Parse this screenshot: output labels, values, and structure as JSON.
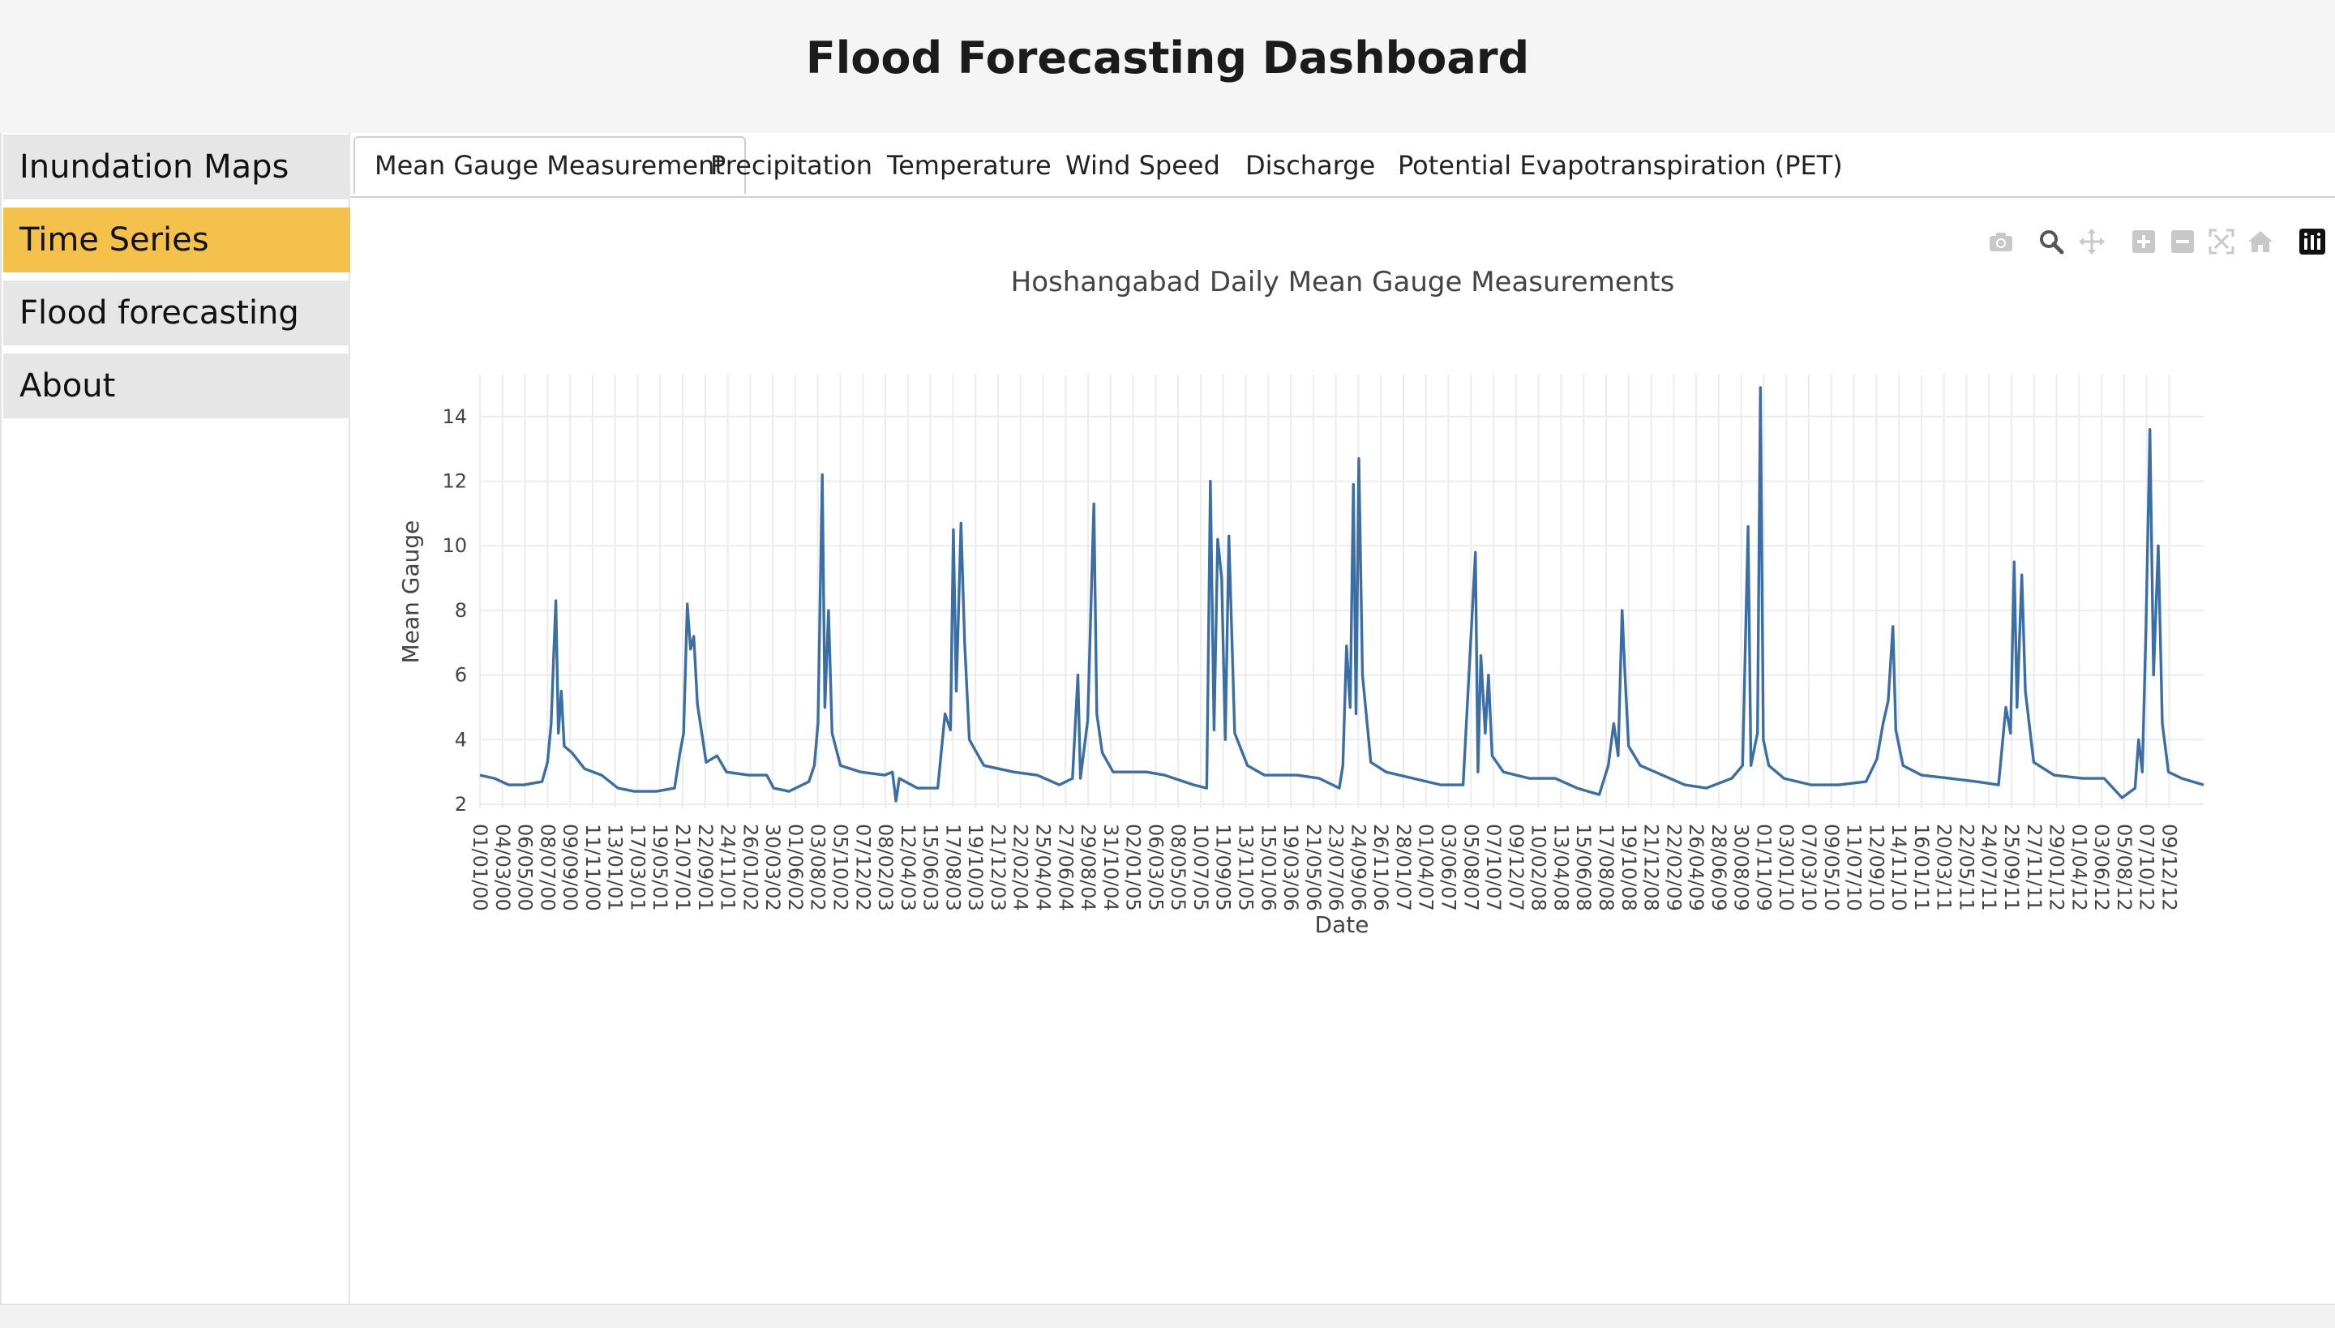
{
  "header": {
    "title": "Flood Forecasting Dashboard"
  },
  "sidebar": {
    "items": [
      {
        "label": "Inundation Maps",
        "active": false
      },
      {
        "label": "Time Series",
        "active": true
      },
      {
        "label": "Flood forecasting",
        "active": false
      },
      {
        "label": "About",
        "active": false
      }
    ]
  },
  "tabs": [
    {
      "label": "Mean Gauge Measurement",
      "active": true
    },
    {
      "label": "Precipitation",
      "active": false
    },
    {
      "label": "Temperature",
      "active": false
    },
    {
      "label": "Wind Speed",
      "active": false
    },
    {
      "label": "Discharge",
      "active": false
    },
    {
      "label": "Potential Evapotranspiration (PET)",
      "active": false
    }
  ],
  "modebar": {
    "icons": [
      "camera-icon",
      "zoom-icon",
      "pan-icon",
      "zoom-in-icon",
      "zoom-out-icon",
      "autoscale-icon",
      "reset-axes-icon",
      "plotly-logo-icon"
    ]
  },
  "colors": {
    "accent": "#f4c14b",
    "series": "#3a6ea5",
    "nav_bg": "#e6e6e6"
  },
  "chart_data": {
    "type": "line",
    "title": "Hoshangabad Daily Mean Gauge Measurements",
    "xlabel": "Date",
    "ylabel": "Mean Gauge",
    "ylim": [
      1.9,
      15.3
    ],
    "yticks": [
      2,
      4,
      6,
      8,
      10,
      12,
      14
    ],
    "xlim": [
      "2000-01-01",
      "2012-12-31"
    ],
    "grid": true,
    "xtick_labels": [
      "01/01/00",
      "04/03/00",
      "06/05/00",
      "08/07/00",
      "09/09/00",
      "11/11/00",
      "13/01/01",
      "17/03/01",
      "19/05/01",
      "21/07/01",
      "22/09/01",
      "24/11/01",
      "26/01/02",
      "30/03/02",
      "01/06/02",
      "03/08/02",
      "05/10/02",
      "07/12/02",
      "08/02/03",
      "12/04/03",
      "15/06/03",
      "17/08/03",
      "19/10/03",
      "21/12/03",
      "22/02/04",
      "25/04/04",
      "27/06/04",
      "29/08/04",
      "31/10/04",
      "02/01/05",
      "06/03/05",
      "08/05/05",
      "10/07/05",
      "11/09/05",
      "13/11/05",
      "15/01/06",
      "19/03/06",
      "21/05/06",
      "23/07/06",
      "24/09/06",
      "26/11/06",
      "28/01/07",
      "01/04/07",
      "03/06/07",
      "05/08/07",
      "07/10/07",
      "09/12/07",
      "10/02/08",
      "13/04/08",
      "15/06/08",
      "17/08/08",
      "19/10/08",
      "21/12/08",
      "22/02/09",
      "26/04/09",
      "28/06/09",
      "30/08/09",
      "01/11/09",
      "03/01/10",
      "07/03/10",
      "09/05/10",
      "11/07/10",
      "12/09/10",
      "14/11/10",
      "16/01/11",
      "20/03/11",
      "22/05/11",
      "24/07/11",
      "25/09/11",
      "27/11/11",
      "29/01/12",
      "01/04/12",
      "03/06/12",
      "05/08/12",
      "07/10/12",
      "09/12/12"
    ],
    "series": [
      {
        "name": "",
        "points": [
          [
            "2000-01-01",
            2.9
          ],
          [
            "2000-02-10",
            2.8
          ],
          [
            "2000-03-20",
            2.6
          ],
          [
            "2000-05-01",
            2.6
          ],
          [
            "2000-06-20",
            2.7
          ],
          [
            "2000-07-05",
            3.3
          ],
          [
            "2000-07-15",
            4.5
          ],
          [
            "2000-07-22",
            6.6
          ],
          [
            "2000-07-28",
            8.3
          ],
          [
            "2000-08-04",
            4.2
          ],
          [
            "2000-08-12",
            5.5
          ],
          [
            "2000-08-20",
            3.8
          ],
          [
            "2000-09-10",
            3.6
          ],
          [
            "2000-10-15",
            3.1
          ],
          [
            "2000-12-01",
            2.9
          ],
          [
            "2001-01-15",
            2.5
          ],
          [
            "2001-03-01",
            2.4
          ],
          [
            "2001-05-01",
            2.4
          ],
          [
            "2001-06-20",
            2.5
          ],
          [
            "2001-07-05",
            3.6
          ],
          [
            "2001-07-15",
            4.2
          ],
          [
            "2001-07-25",
            8.2
          ],
          [
            "2001-08-03",
            6.8
          ],
          [
            "2001-08-12",
            7.2
          ],
          [
            "2001-08-22",
            5.1
          ],
          [
            "2001-09-15",
            3.3
          ],
          [
            "2001-10-15",
            3.5
          ],
          [
            "2001-11-10",
            3.0
          ],
          [
            "2002-01-10",
            2.9
          ],
          [
            "2002-03-01",
            2.9
          ],
          [
            "2002-03-20",
            2.5
          ],
          [
            "2002-05-01",
            2.4
          ],
          [
            "2002-06-25",
            2.7
          ],
          [
            "2002-07-10",
            3.2
          ],
          [
            "2002-07-20",
            4.5
          ],
          [
            "2002-08-01",
            12.2
          ],
          [
            "2002-08-08",
            5.0
          ],
          [
            "2002-08-18",
            8.0
          ],
          [
            "2002-08-28",
            4.2
          ],
          [
            "2002-09-20",
            3.2
          ],
          [
            "2002-11-15",
            3.0
          ],
          [
            "2003-01-20",
            2.9
          ],
          [
            "2003-02-10",
            3.0
          ],
          [
            "2003-02-20",
            2.1
          ],
          [
            "2003-03-01",
            2.8
          ],
          [
            "2003-04-20",
            2.5
          ],
          [
            "2003-06-15",
            2.5
          ],
          [
            "2003-07-05",
            4.8
          ],
          [
            "2003-07-20",
            4.3
          ],
          [
            "2003-07-28",
            10.5
          ],
          [
            "2003-08-05",
            5.5
          ],
          [
            "2003-08-18",
            10.7
          ],
          [
            "2003-08-28",
            7.0
          ],
          [
            "2003-09-10",
            4.0
          ],
          [
            "2003-10-20",
            3.2
          ],
          [
            "2004-01-10",
            3.0
          ],
          [
            "2004-03-15",
            2.9
          ],
          [
            "2004-05-15",
            2.6
          ],
          [
            "2004-06-20",
            2.8
          ],
          [
            "2004-07-05",
            6.0
          ],
          [
            "2004-07-12",
            2.8
          ],
          [
            "2004-08-01",
            4.6
          ],
          [
            "2004-08-18",
            11.3
          ],
          [
            "2004-08-26",
            4.8
          ],
          [
            "2004-09-10",
            3.6
          ],
          [
            "2004-10-10",
            3.0
          ],
          [
            "2005-01-10",
            3.0
          ],
          [
            "2005-03-01",
            2.9
          ],
          [
            "2005-05-20",
            2.6
          ],
          [
            "2005-06-25",
            2.5
          ],
          [
            "2005-07-05",
            12.0
          ],
          [
            "2005-07-15",
            4.3
          ],
          [
            "2005-07-25",
            10.2
          ],
          [
            "2005-08-05",
            9.0
          ],
          [
            "2005-08-15",
            4.0
          ],
          [
            "2005-08-25",
            10.3
          ],
          [
            "2005-09-10",
            4.2
          ],
          [
            "2005-10-15",
            3.2
          ],
          [
            "2005-12-01",
            2.9
          ],
          [
            "2006-03-01",
            2.9
          ],
          [
            "2006-05-01",
            2.8
          ],
          [
            "2006-06-25",
            2.5
          ],
          [
            "2006-07-05",
            3.2
          ],
          [
            "2006-07-15",
            6.9
          ],
          [
            "2006-07-25",
            5.0
          ],
          [
            "2006-08-03",
            11.9
          ],
          [
            "2006-08-10",
            4.8
          ],
          [
            "2006-08-18",
            12.7
          ],
          [
            "2006-08-28",
            6.0
          ],
          [
            "2006-09-20",
            3.3
          ],
          [
            "2006-11-01",
            3.0
          ],
          [
            "2007-01-15",
            2.8
          ],
          [
            "2007-04-01",
            2.6
          ],
          [
            "2007-06-01",
            2.6
          ],
          [
            "2007-07-05",
            9.8
          ],
          [
            "2007-07-12",
            3.0
          ],
          [
            "2007-07-20",
            6.6
          ],
          [
            "2007-08-01",
            4.2
          ],
          [
            "2007-08-10",
            6.0
          ],
          [
            "2007-08-20",
            3.5
          ],
          [
            "2007-09-20",
            3.0
          ],
          [
            "2007-12-01",
            2.8
          ],
          [
            "2008-02-10",
            2.8
          ],
          [
            "2008-04-10",
            2.5
          ],
          [
            "2008-06-10",
            2.3
          ],
          [
            "2008-07-05",
            3.2
          ],
          [
            "2008-07-20",
            4.5
          ],
          [
            "2008-08-01",
            3.5
          ],
          [
            "2008-08-12",
            8.0
          ],
          [
            "2008-08-20",
            6.0
          ],
          [
            "2008-08-30",
            3.8
          ],
          [
            "2008-10-01",
            3.2
          ],
          [
            "2008-12-01",
            2.9
          ],
          [
            "2009-02-01",
            2.6
          ],
          [
            "2009-04-01",
            2.5
          ],
          [
            "2009-06-10",
            2.8
          ],
          [
            "2009-07-10",
            3.2
          ],
          [
            "2009-07-25",
            10.6
          ],
          [
            "2009-08-02",
            3.2
          ],
          [
            "2009-08-20",
            4.2
          ],
          [
            "2009-08-28",
            14.9
          ],
          [
            "2009-09-05",
            4.0
          ],
          [
            "2009-09-20",
            3.2
          ],
          [
            "2009-11-01",
            2.8
          ],
          [
            "2010-01-15",
            2.6
          ],
          [
            "2010-04-01",
            2.6
          ],
          [
            "2010-06-15",
            2.7
          ],
          [
            "2010-07-15",
            3.4
          ],
          [
            "2010-08-01",
            4.5
          ],
          [
            "2010-08-15",
            5.2
          ],
          [
            "2010-08-28",
            7.5
          ],
          [
            "2010-09-05",
            4.3
          ],
          [
            "2010-09-25",
            3.2
          ],
          [
            "2010-11-15",
            2.9
          ],
          [
            "2011-02-01",
            2.8
          ],
          [
            "2011-04-15",
            2.7
          ],
          [
            "2011-06-15",
            2.6
          ],
          [
            "2011-07-05",
            5.0
          ],
          [
            "2011-07-18",
            4.2
          ],
          [
            "2011-07-28",
            9.5
          ],
          [
            "2011-08-05",
            5.0
          ],
          [
            "2011-08-18",
            9.1
          ],
          [
            "2011-08-28",
            5.5
          ],
          [
            "2011-09-20",
            3.3
          ],
          [
            "2011-11-15",
            2.9
          ],
          [
            "2012-02-01",
            2.8
          ],
          [
            "2012-04-01",
            2.8
          ],
          [
            "2012-05-20",
            2.2
          ],
          [
            "2012-06-25",
            2.5
          ],
          [
            "2012-07-05",
            4.0
          ],
          [
            "2012-07-15",
            3.0
          ],
          [
            "2012-07-25",
            7.4
          ],
          [
            "2012-08-05",
            13.6
          ],
          [
            "2012-08-15",
            6.0
          ],
          [
            "2012-08-28",
            10.0
          ],
          [
            "2012-09-08",
            4.5
          ],
          [
            "2012-09-25",
            3.0
          ],
          [
            "2012-11-01",
            2.8
          ],
          [
            "2012-12-31",
            2.6
          ]
        ]
      }
    ]
  }
}
